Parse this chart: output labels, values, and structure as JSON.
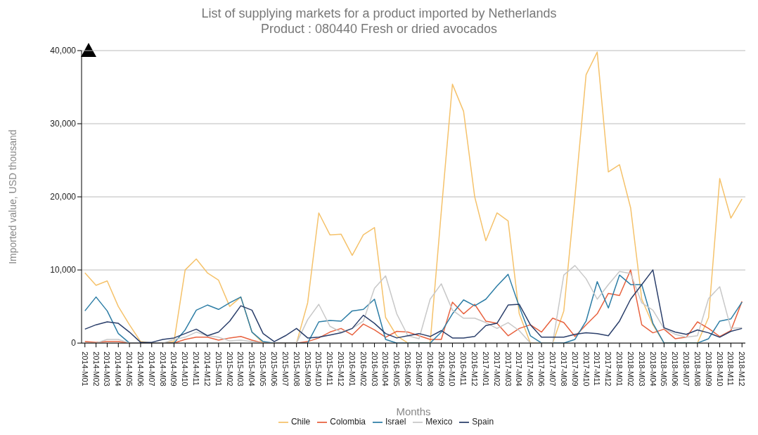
{
  "chart_data": {
    "type": "line",
    "title": "List of supplying markets for a product imported by Netherlands",
    "subtitle": "Product : 080440 Fresh or dried avocados",
    "xlabel": "Months",
    "ylabel": "Imported value, USD thousand",
    "categories": [
      "2014-M01",
      "2014-M02",
      "2014-M03",
      "2014-M04",
      "2014-M05",
      "2014-M06",
      "2014-M07",
      "2014-M08",
      "2014-M09",
      "2014-M10",
      "2014-M11",
      "2014-M12",
      "2015-M01",
      "2015-M02",
      "2015-M03",
      "2015-M04",
      "2015-M05",
      "2015-M06",
      "2015-M07",
      "2015-M08",
      "2015-M09",
      "2015-M10",
      "2015-M11",
      "2015-M12",
      "2016-M01",
      "2016-M02",
      "2016-M03",
      "2016-M04",
      "2016-M05",
      "2016-M06",
      "2016-M07",
      "2016-M08",
      "2016-M09",
      "2016-M10",
      "2016-M11",
      "2016-M12",
      "2017-M01",
      "2017-M02",
      "2017-M03",
      "2017-M04",
      "2017-M05",
      "2017-M06",
      "2017-M07",
      "2017-M08",
      "2017-M09",
      "2017-M10",
      "2017-M11",
      "2017-M12",
      "2018-M01",
      "2018-M02",
      "2018-M03",
      "2018-M04",
      "2018-M05",
      "2018-M06",
      "2018-M07",
      "2018-M08",
      "2018-M09",
      "2018-M10",
      "2018-M11",
      "2018-M12"
    ],
    "series": [
      {
        "name": "Chile",
        "color": "#f5c26b",
        "values": [
          9600,
          7900,
          8500,
          5000,
          2500,
          200,
          0,
          0,
          200,
          10000,
          11500,
          9600,
          8600,
          5000,
          6300,
          1500,
          0,
          0,
          0,
          0,
          5500,
          17800,
          14800,
          14900,
          12000,
          14800,
          15800,
          3500,
          1000,
          0,
          0,
          0,
          18000,
          35400,
          31700,
          20000,
          14000,
          17800,
          16700,
          4000,
          0,
          0,
          0,
          4400,
          20000,
          36700,
          39800,
          23400,
          24400,
          18500,
          6000,
          2500,
          0,
          0,
          0,
          0,
          3500,
          22500,
          17100,
          19700
        ]
      },
      {
        "name": "Colombia",
        "color": "#e8623f",
        "values": [
          200,
          100,
          200,
          200,
          0,
          0,
          0,
          0,
          0,
          500,
          800,
          800,
          400,
          700,
          900,
          400,
          0,
          0,
          0,
          0,
          200,
          700,
          1500,
          2000,
          1100,
          2600,
          1800,
          800,
          1600,
          1500,
          1000,
          500,
          500,
          5600,
          4000,
          5300,
          3000,
          2700,
          1000,
          2000,
          2500,
          1500,
          3400,
          2800,
          900,
          2500,
          4000,
          6800,
          6500,
          10000,
          2500,
          1400,
          1900,
          600,
          800,
          2900,
          2000,
          900,
          1700,
          5700
        ]
      },
      {
        "name": "Israel",
        "color": "#2e7ea6",
        "values": [
          4400,
          6300,
          4400,
          1300,
          0,
          0,
          0,
          0,
          0,
          1800,
          4500,
          5200,
          4600,
          5500,
          6300,
          1500,
          200,
          0,
          0,
          0,
          0,
          2900,
          3100,
          3000,
          4400,
          4600,
          6000,
          500,
          0,
          0,
          0,
          0,
          1500,
          4000,
          5900,
          5100,
          6000,
          7800,
          9400,
          5000,
          1000,
          0,
          0,
          0,
          500,
          3000,
          8400,
          4800,
          9300,
          8000,
          8000,
          2700,
          0,
          0,
          0,
          0,
          600,
          3000,
          3300,
          5600
        ]
      },
      {
        "name": "Mexico",
        "color": "#c8c8c8",
        "values": [
          0,
          0,
          500,
          500,
          0,
          0,
          0,
          0,
          500,
          800,
          1500,
          1000,
          800,
          300,
          400,
          200,
          0,
          0,
          0,
          0,
          3200,
          5300,
          2300,
          1500,
          2000,
          3000,
          7500,
          9200,
          4000,
          1000,
          600,
          6000,
          8100,
          4500,
          3400,
          3400,
          2800,
          2000,
          2800,
          1700,
          0,
          0,
          0,
          9300,
          10600,
          8800,
          6000,
          8000,
          9800,
          9500,
          5500,
          4500,
          2000,
          1200,
          800,
          1000,
          6100,
          7700,
          2000,
          2100
        ]
      },
      {
        "name": "Spain",
        "color": "#2b3f6b",
        "values": [
          1900,
          2500,
          2900,
          2700,
          1500,
          100,
          100,
          500,
          700,
          1300,
          1900,
          1000,
          1500,
          3000,
          5100,
          4500,
          1300,
          200,
          1000,
          2000,
          700,
          800,
          1100,
          1400,
          2000,
          3800,
          2700,
          1300,
          700,
          1000,
          1300,
          900,
          1700,
          700,
          700,
          900,
          2400,
          2700,
          5200,
          5300,
          2500,
          800,
          800,
          800,
          1200,
          1400,
          1300,
          1000,
          3000,
          6000,
          8000,
          10000,
          2100,
          1500,
          1200,
          1800,
          1400,
          800,
          1600,
          2000
        ]
      }
    ],
    "ylim": [
      0,
      40000
    ],
    "yticks": [
      {
        "value": 0,
        "label": "0"
      },
      {
        "value": 10000,
        "label": "10,000"
      },
      {
        "value": 20000,
        "label": "20,000"
      },
      {
        "value": 30000,
        "label": "30,000"
      },
      {
        "value": 40000,
        "label": "40,000"
      }
    ],
    "grid": "y",
    "legend": "bottom",
    "marker": "none",
    "line_style": "solid"
  }
}
